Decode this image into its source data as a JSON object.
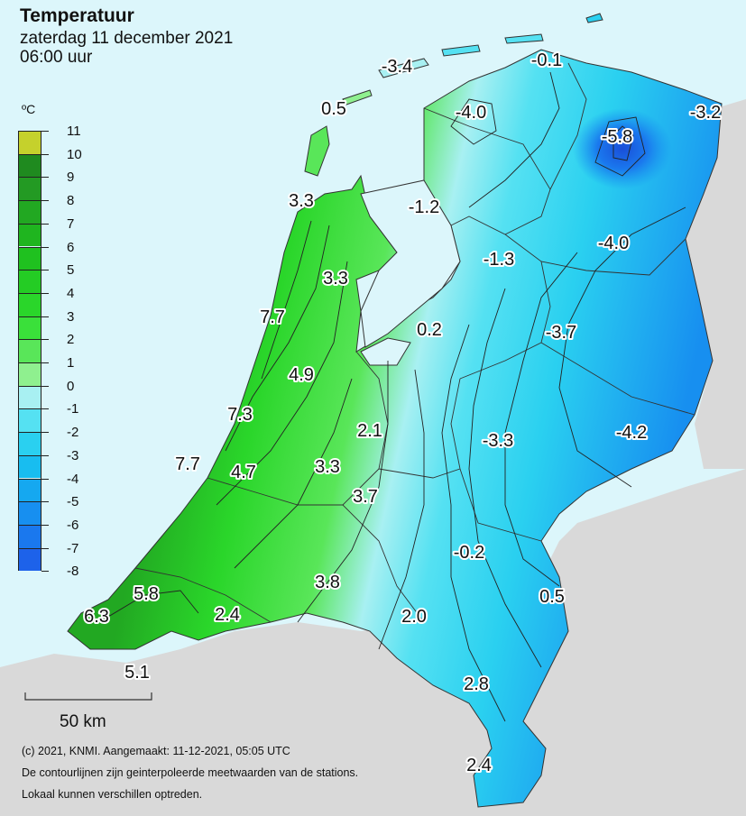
{
  "header": {
    "title": "Temperatuur",
    "date": "zaterdag 11 december 2021",
    "time": "06:00 uur"
  },
  "legend": {
    "unit": "ºC",
    "ticks": [
      "11",
      "10",
      "9",
      "8",
      "7",
      "6",
      "5",
      "4",
      "3",
      "2",
      "1",
      "0",
      "-1",
      "-2",
      "-3",
      "-4",
      "-5",
      "-6",
      "-7",
      "-8"
    ],
    "colors": [
      "#c5d12c",
      "#1f8a1f",
      "#239a23",
      "#22a822",
      "#1fb51f",
      "#1fc11f",
      "#24cc24",
      "#2ad62a",
      "#3ae03a",
      "#59e659",
      "#8ff08f",
      "#a8f0f2",
      "#55e1f2",
      "#2ad0f0",
      "#18bdf0",
      "#15a8f0",
      "#178ff0",
      "#1a78ee",
      "#1d62ea"
    ]
  },
  "stations": [
    {
      "label": "-3.4"
    },
    {
      "label": "-0.1"
    },
    {
      "label": "0.5"
    },
    {
      "label": "-4.0"
    },
    {
      "label": "-3.2"
    },
    {
      "label": "-5.8"
    },
    {
      "label": "3.3"
    },
    {
      "label": "-1.2"
    },
    {
      "label": "-4.0"
    },
    {
      "label": "-1.3"
    },
    {
      "label": "3.3"
    },
    {
      "label": "7.7"
    },
    {
      "label": "0.2"
    },
    {
      "label": "-3.7"
    },
    {
      "label": "4.9"
    },
    {
      "label": "7.3"
    },
    {
      "label": "2.1"
    },
    {
      "label": "-3.3"
    },
    {
      "label": "-4.2"
    },
    {
      "label": "7.7"
    },
    {
      "label": "4.7"
    },
    {
      "label": "3.3"
    },
    {
      "label": "3.7"
    },
    {
      "label": "-0.2"
    },
    {
      "label": "3.8"
    },
    {
      "label": "5.8"
    },
    {
      "label": "0.5"
    },
    {
      "label": "6.3"
    },
    {
      "label": "2.4"
    },
    {
      "label": "2.0"
    },
    {
      "label": "5.1"
    },
    {
      "label": "2.8"
    },
    {
      "label": "2.4"
    }
  ],
  "scale": {
    "label": "50 km"
  },
  "footer": {
    "line1": "(c) 2021, KNMI. Aangemaakt: 11-12-2021, 05:05 UTC",
    "line2": "De contourlijnen zijn geinterpoleerde meetwaarden van de stations.",
    "line3": "Lokaal kunnen verschillen optreden."
  }
}
